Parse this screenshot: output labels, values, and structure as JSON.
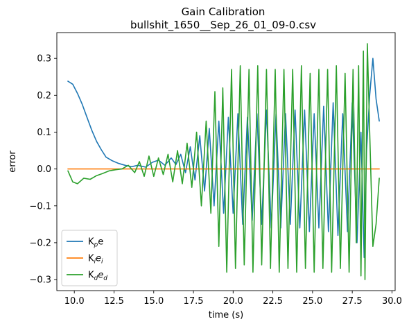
{
  "chart_data": {
    "type": "line",
    "title": "Gain Calibration",
    "subtitle": "bullshit_1650__Sep_26_01_09-0.csv",
    "xlabel": "time (s)",
    "ylabel": "error",
    "xlim": [
      8.9,
      30.2
    ],
    "ylim": [
      -0.33,
      0.37
    ],
    "xticks": [
      10.0,
      12.5,
      15.0,
      17.5,
      20.0,
      22.5,
      25.0,
      27.5,
      30.0
    ],
    "xtick_labels": [
      "10.0",
      "12.5",
      "15.0",
      "17.5",
      "20.0",
      "22.5",
      "25.0",
      "27.5",
      "30.0"
    ],
    "yticks": [
      -0.3,
      -0.2,
      -0.1,
      0.0,
      0.1,
      0.2,
      0.3
    ],
    "ytick_labels": [
      "−0.3",
      "−0.2",
      "−0.1",
      "0.0",
      "0.1",
      "0.2",
      "0.3"
    ],
    "grid": false,
    "legend_position": "lower-left",
    "series": [
      {
        "name": "K_p e",
        "legend": {
          "base": "K",
          "sub": "p",
          "rest": "e"
        },
        "color": "#1f77b4",
        "x": [
          9.6,
          9.9,
          10.2,
          10.5,
          10.8,
          11.1,
          11.4,
          11.7,
          12.0,
          12.4,
          12.8,
          13.2,
          13.6,
          14.0,
          14.5,
          14.9,
          15.3,
          15.7,
          16.1,
          16.4,
          16.7,
          17.0,
          17.3,
          17.6,
          17.9,
          18.2,
          18.5,
          18.8,
          19.1,
          19.4,
          19.7,
          20.0,
          20.3,
          20.6,
          20.9,
          21.2,
          21.5,
          21.8,
          22.1,
          22.4,
          22.7,
          23.0,
          23.3,
          23.6,
          23.9,
          24.2,
          24.5,
          24.8,
          25.1,
          25.4,
          25.7,
          26.0,
          26.3,
          26.6,
          26.9,
          27.2,
          27.5,
          27.8,
          28.05,
          28.25,
          28.4,
          28.6,
          28.8,
          29.0,
          29.2
        ],
        "y": [
          0.238,
          0.23,
          0.205,
          0.175,
          0.14,
          0.105,
          0.075,
          0.052,
          0.032,
          0.022,
          0.015,
          0.01,
          0.006,
          0.01,
          0.005,
          0.018,
          0.024,
          0.01,
          0.03,
          0.012,
          0.04,
          -0.01,
          0.06,
          -0.03,
          0.09,
          -0.06,
          0.11,
          -0.1,
          0.13,
          -0.12,
          0.14,
          -0.12,
          0.15,
          -0.15,
          0.14,
          -0.14,
          0.15,
          -0.15,
          0.16,
          -0.16,
          0.15,
          -0.16,
          0.15,
          -0.15,
          0.16,
          -0.16,
          0.16,
          -0.17,
          0.15,
          -0.16,
          0.17,
          -0.17,
          0.18,
          -0.18,
          0.15,
          -0.17,
          0.18,
          -0.2,
          0.1,
          -0.24,
          0.05,
          0.2,
          0.3,
          0.19,
          0.13
        ]
      },
      {
        "name": "K_i e_i",
        "legend": {
          "base": "K",
          "sub": "i",
          "rest": "e",
          "rest_sub": "i"
        },
        "color": "#ff7f0e",
        "x": [
          9.6,
          29.2
        ],
        "y": [
          0.0,
          0.0
        ]
      },
      {
        "name": "K_d e_d",
        "legend": {
          "base": "K",
          "sub": "d",
          "rest": "e",
          "rest_sub": "d"
        },
        "color": "#2ca02c",
        "x": [
          9.6,
          9.9,
          10.2,
          10.6,
          11.0,
          11.4,
          11.8,
          12.2,
          12.6,
          13.0,
          13.4,
          13.8,
          14.1,
          14.4,
          14.7,
          15.0,
          15.3,
          15.6,
          15.9,
          16.2,
          16.5,
          16.8,
          17.1,
          17.4,
          17.7,
          18.0,
          18.3,
          18.6,
          18.85,
          19.1,
          19.35,
          19.6,
          19.9,
          20.15,
          20.45,
          20.7,
          21.0,
          21.25,
          21.55,
          21.8,
          22.1,
          22.35,
          22.65,
          22.9,
          23.2,
          23.45,
          23.75,
          24.0,
          24.3,
          24.55,
          24.85,
          25.1,
          25.4,
          25.65,
          25.95,
          26.2,
          26.5,
          26.75,
          27.05,
          27.3,
          27.55,
          27.75,
          27.9,
          28.05,
          28.2,
          28.3,
          28.45,
          28.6,
          28.8,
          29.0,
          29.2
        ],
        "y": [
          -0.005,
          -0.035,
          -0.04,
          -0.025,
          -0.028,
          -0.018,
          -0.012,
          -0.005,
          -0.002,
          0.0,
          0.01,
          -0.01,
          0.02,
          -0.02,
          0.035,
          -0.02,
          0.03,
          -0.015,
          0.04,
          -0.035,
          0.05,
          -0.04,
          0.07,
          -0.05,
          0.1,
          -0.1,
          0.13,
          -0.12,
          0.21,
          -0.21,
          0.22,
          -0.28,
          0.27,
          -0.27,
          0.28,
          -0.26,
          0.27,
          -0.28,
          0.28,
          -0.26,
          0.27,
          -0.27,
          0.27,
          -0.28,
          0.27,
          -0.27,
          0.27,
          -0.28,
          0.28,
          -0.27,
          0.26,
          -0.28,
          0.27,
          -0.27,
          0.27,
          -0.28,
          0.28,
          -0.27,
          0.26,
          -0.28,
          0.27,
          -0.2,
          0.28,
          -0.29,
          0.32,
          -0.3,
          0.34,
          0.1,
          -0.21,
          -0.15,
          -0.025
        ]
      }
    ]
  }
}
